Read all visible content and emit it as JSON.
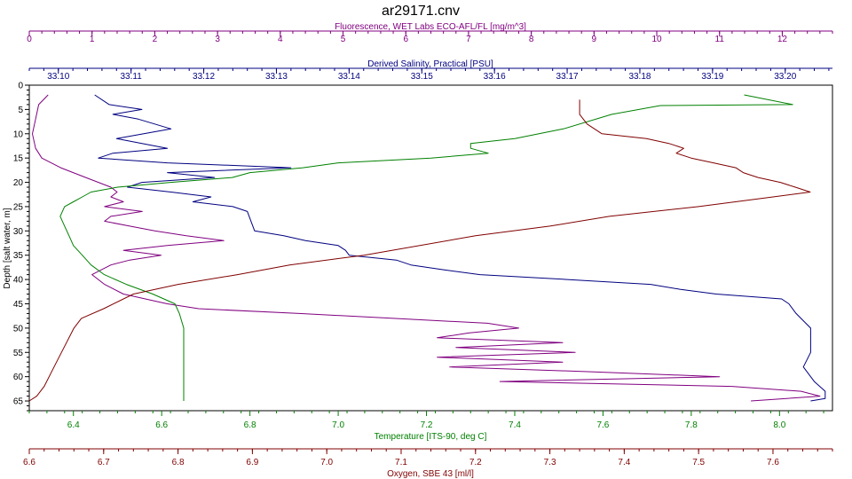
{
  "chart_data": {
    "type": "line",
    "title": "ar29171.cnv",
    "y_axis": {
      "label": "Depth [salt water, m]",
      "range": [
        0,
        67
      ],
      "reversed": true,
      "ticks": [
        0,
        5,
        10,
        15,
        20,
        25,
        30,
        35,
        40,
        45,
        50,
        55,
        60,
        65
      ]
    },
    "x_axes": [
      {
        "id": "fluorescence",
        "position": "top",
        "label": "Fluorescence, WET Labs ECO-AFL/FL [mg/m^3]",
        "color": "#800080",
        "range": [
          0,
          12.8
        ],
        "ticks": [
          0,
          1,
          2,
          3,
          4,
          5,
          6,
          7,
          8,
          9,
          10,
          11,
          12
        ]
      },
      {
        "id": "salinity",
        "position": "top",
        "label": "Derived Salinity, Practical [PSU]",
        "color": "#000080",
        "range": [
          33.096,
          33.2065
        ],
        "ticks": [
          "33.10",
          "33.11",
          "33.12",
          "33.13",
          "33.14",
          "33.15",
          "33.16",
          "33.17",
          "33.18",
          "33.19",
          "33.20"
        ]
      },
      {
        "id": "temperature",
        "position": "bottom",
        "label": "Temperature [ITS-90, deg C]",
        "color": "#008000",
        "range": [
          6.3,
          8.12
        ],
        "ticks": [
          "6.4",
          "6.6",
          "6.8",
          "7.0",
          "7.2",
          "7.4",
          "7.6",
          "7.8",
          "8.0"
        ]
      },
      {
        "id": "oxygen",
        "position": "bottom",
        "label": "Oxygen, SBE 43 [ml/l]",
        "color": "#800000",
        "range": [
          6.6,
          7.68
        ],
        "ticks": [
          "6.6",
          "6.7",
          "6.8",
          "6.9",
          "7.0",
          "7.1",
          "7.2",
          "7.3",
          "7.4",
          "7.5",
          "7.6"
        ]
      }
    ],
    "series": [
      {
        "axis": "fluorescence",
        "color": "#800080",
        "points": [
          [
            0.3,
            2
          ],
          [
            0.15,
            4
          ],
          [
            0.1,
            7
          ],
          [
            0.05,
            10
          ],
          [
            0.1,
            13
          ],
          [
            0.2,
            15
          ],
          [
            0.5,
            17
          ],
          [
            0.9,
            19
          ],
          [
            1.3,
            21
          ],
          [
            1.4,
            22
          ],
          [
            1.3,
            23
          ],
          [
            1.5,
            24
          ],
          [
            1.2,
            25
          ],
          [
            1.8,
            26
          ],
          [
            1.3,
            27
          ],
          [
            1.2,
            28
          ],
          [
            1.6,
            29
          ],
          [
            2.0,
            30
          ],
          [
            2.5,
            31
          ],
          [
            3.1,
            32
          ],
          [
            2.2,
            33
          ],
          [
            1.5,
            34
          ],
          [
            2.1,
            35
          ],
          [
            1.6,
            36
          ],
          [
            1.3,
            37
          ],
          [
            1.0,
            39
          ],
          [
            1.2,
            41
          ],
          [
            1.5,
            43
          ],
          [
            2.2,
            45
          ],
          [
            2.7,
            46
          ],
          [
            4.3,
            47
          ],
          [
            5.8,
            48
          ],
          [
            7.3,
            49
          ],
          [
            7.8,
            50
          ],
          [
            7.0,
            51
          ],
          [
            6.5,
            52
          ],
          [
            8.5,
            53
          ],
          [
            6.8,
            54
          ],
          [
            8.7,
            55
          ],
          [
            6.5,
            56
          ],
          [
            8.5,
            57
          ],
          [
            6.7,
            58
          ],
          [
            9.0,
            59
          ],
          [
            11.0,
            60
          ],
          [
            7.5,
            61
          ],
          [
            11.2,
            62
          ],
          [
            12.3,
            63
          ],
          [
            12.6,
            64
          ],
          [
            11.5,
            65
          ]
        ]
      },
      {
        "axis": "salinity",
        "color": "#000080",
        "points": [
          [
            33.105,
            2
          ],
          [
            33.107,
            4
          ],
          [
            33.1115,
            5
          ],
          [
            33.1075,
            6
          ],
          [
            33.111,
            7
          ],
          [
            33.1155,
            9
          ],
          [
            33.108,
            11
          ],
          [
            33.115,
            13
          ],
          [
            33.1075,
            14
          ],
          [
            33.1055,
            15
          ],
          [
            33.115,
            16
          ],
          [
            33.132,
            17
          ],
          [
            33.115,
            18
          ],
          [
            33.1215,
            19
          ],
          [
            33.1115,
            20
          ],
          [
            33.1095,
            21
          ],
          [
            33.1155,
            22
          ],
          [
            33.121,
            23
          ],
          [
            33.1185,
            24
          ],
          [
            33.124,
            25
          ],
          [
            33.126,
            26
          ],
          [
            33.1265,
            28
          ],
          [
            33.127,
            30
          ],
          [
            33.131,
            31
          ],
          [
            33.134,
            32
          ],
          [
            33.1385,
            33
          ],
          [
            33.1395,
            34
          ],
          [
            33.14,
            35
          ],
          [
            33.1465,
            36
          ],
          [
            33.1485,
            37
          ],
          [
            33.153,
            38
          ],
          [
            33.158,
            39
          ],
          [
            33.17,
            40
          ],
          [
            33.1815,
            41
          ],
          [
            33.1855,
            42
          ],
          [
            33.1905,
            43
          ],
          [
            33.1995,
            44
          ],
          [
            33.2005,
            45
          ],
          [
            33.2015,
            47
          ],
          [
            33.2035,
            50
          ],
          [
            33.2035,
            55
          ],
          [
            33.2025,
            58
          ],
          [
            33.204,
            61
          ],
          [
            33.2055,
            63
          ],
          [
            33.2055,
            64.5
          ],
          [
            33.2035,
            65
          ]
        ]
      },
      {
        "axis": "temperature",
        "color": "#008000",
        "points": [
          [
            7.92,
            2
          ],
          [
            8.03,
            4
          ],
          [
            7.73,
            4.2
          ],
          [
            7.62,
            6
          ],
          [
            7.51,
            9
          ],
          [
            7.4,
            11
          ],
          [
            7.3,
            12
          ],
          [
            7.3,
            13
          ],
          [
            7.34,
            14
          ],
          [
            7.21,
            15
          ],
          [
            7.0,
            16
          ],
          [
            6.92,
            17
          ],
          [
            6.8,
            18
          ],
          [
            6.76,
            19
          ],
          [
            6.62,
            20
          ],
          [
            6.5,
            21
          ],
          [
            6.44,
            22
          ],
          [
            6.42,
            23
          ],
          [
            6.4,
            24
          ],
          [
            6.38,
            25
          ],
          [
            6.37,
            27
          ],
          [
            6.38,
            29
          ],
          [
            6.39,
            31
          ],
          [
            6.4,
            33
          ],
          [
            6.42,
            35
          ],
          [
            6.44,
            37
          ],
          [
            6.47,
            39
          ],
          [
            6.52,
            41
          ],
          [
            6.58,
            43
          ],
          [
            6.63,
            45
          ],
          [
            6.64,
            47
          ],
          [
            6.65,
            50
          ],
          [
            6.65,
            55
          ],
          [
            6.65,
            60
          ],
          [
            6.65,
            65
          ]
        ]
      },
      {
        "axis": "oxygen",
        "color": "#800000",
        "points": [
          [
            7.34,
            3
          ],
          [
            7.34,
            6
          ],
          [
            7.35,
            8
          ],
          [
            7.37,
            10
          ],
          [
            7.43,
            11
          ],
          [
            7.46,
            12
          ],
          [
            7.48,
            13
          ],
          [
            7.47,
            14
          ],
          [
            7.49,
            15
          ],
          [
            7.52,
            16
          ],
          [
            7.55,
            17
          ],
          [
            7.56,
            18
          ],
          [
            7.58,
            19
          ],
          [
            7.61,
            20
          ],
          [
            7.63,
            21
          ],
          [
            7.65,
            22
          ],
          [
            7.6,
            23
          ],
          [
            7.5,
            25
          ],
          [
            7.38,
            27
          ],
          [
            7.3,
            29
          ],
          [
            7.2,
            31
          ],
          [
            7.05,
            35
          ],
          [
            6.95,
            37
          ],
          [
            6.88,
            39
          ],
          [
            6.8,
            41
          ],
          [
            6.74,
            43
          ],
          [
            6.7,
            46
          ],
          [
            6.67,
            48
          ],
          [
            6.66,
            50
          ],
          [
            6.65,
            53
          ],
          [
            6.64,
            56
          ],
          [
            6.63,
            59
          ],
          [
            6.62,
            62
          ],
          [
            6.61,
            64
          ],
          [
            6.6,
            65
          ]
        ]
      }
    ]
  }
}
